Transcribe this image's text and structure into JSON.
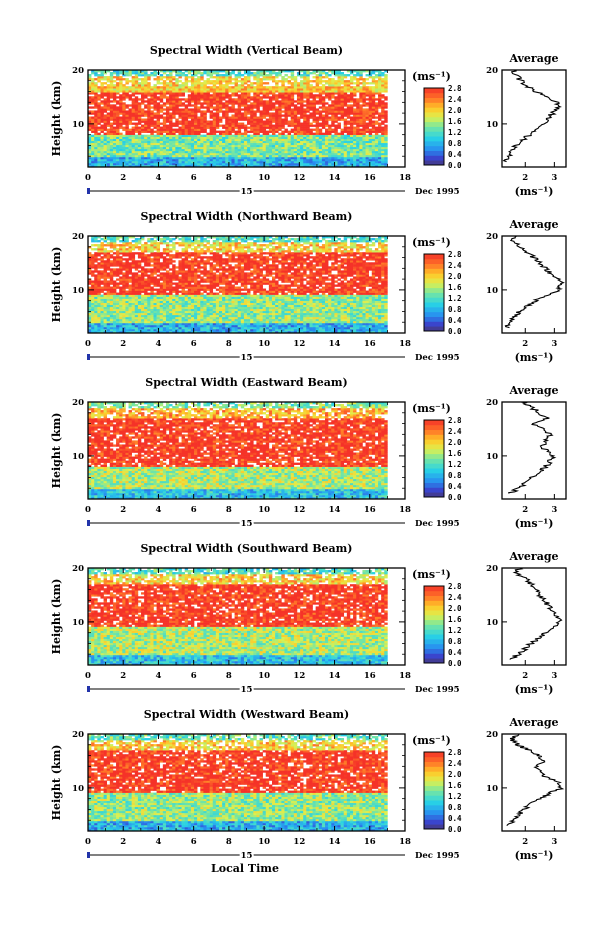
{
  "figure": {
    "date_label": "Dec 1995",
    "day_label": "15",
    "x_axis_title": "Local Time",
    "y_axis_title": "Height (km)",
    "unit_label": "(ms⁻¹)",
    "average_title": "Average",
    "average_unit_label": "(ms⁻¹)"
  },
  "chart_data": [
    {
      "type": "heatmap",
      "title": "Spectral Width (Vertical Beam)",
      "xlabel": "",
      "ylabel": "Height (km)",
      "xlim": [
        0,
        18
      ],
      "ylim": [
        2,
        20
      ],
      "x_ticks": [
        0,
        2,
        4,
        6,
        8,
        10,
        12,
        14,
        16,
        18
      ],
      "y_ticks": [
        10,
        20
      ],
      "data_end_time": 17,
      "colorbar": {
        "label": "(ms⁻¹)",
        "range": [
          0,
          2.8
        ],
        "ticks": [
          "0.0",
          "0.4",
          "0.8",
          "1.2",
          "1.6",
          "2.0",
          "2.4",
          "2.8"
        ]
      },
      "layers": [
        {
          "height_range": [
            2,
            4
          ],
          "level": 0.8
        },
        {
          "height_range": [
            4,
            8
          ],
          "level": 1.4
        },
        {
          "height_range": [
            8,
            16
          ],
          "level": 2.8
        },
        {
          "height_range": [
            16,
            19
          ],
          "level": 2.0
        },
        {
          "height_range": [
            19,
            20
          ],
          "level": 1.2
        }
      ],
      "average_profile": {
        "xlim": [
          1.2,
          3.4
        ],
        "x_ticks": [
          2,
          3
        ],
        "heights": [
          3,
          4,
          5,
          6,
          7,
          8,
          9,
          10,
          11,
          12,
          13,
          14,
          15,
          16,
          17,
          18,
          19,
          20
        ],
        "values": [
          1.3,
          1.45,
          1.5,
          1.7,
          1.9,
          2.15,
          2.4,
          2.6,
          2.75,
          2.95,
          3.15,
          3.05,
          2.7,
          2.35,
          2.05,
          1.85,
          1.7,
          1.6
        ]
      }
    },
    {
      "type": "heatmap",
      "title": "Spectral Width (Northward Beam)",
      "xlabel": "",
      "ylabel": "Height (km)",
      "xlim": [
        0,
        18
      ],
      "ylim": [
        2,
        20
      ],
      "x_ticks": [
        0,
        2,
        4,
        6,
        8,
        10,
        12,
        14,
        16,
        18
      ],
      "y_ticks": [
        10,
        20
      ],
      "data_end_time": 17,
      "colorbar": {
        "label": "(ms⁻¹)",
        "range": [
          0,
          2.8
        ],
        "ticks": [
          "0.0",
          "0.4",
          "0.8",
          "1.2",
          "1.6",
          "2.0",
          "2.4",
          "2.8"
        ]
      },
      "layers": [
        {
          "height_range": [
            2,
            4
          ],
          "level": 0.8
        },
        {
          "height_range": [
            4,
            9
          ],
          "level": 1.5
        },
        {
          "height_range": [
            9,
            17
          ],
          "level": 2.8
        },
        {
          "height_range": [
            17,
            19
          ],
          "level": 2.0
        },
        {
          "height_range": [
            19,
            20
          ],
          "level": 1.2
        }
      ],
      "average_profile": {
        "xlim": [
          1.2,
          3.4
        ],
        "x_ticks": [
          2,
          3
        ],
        "heights": [
          3,
          4,
          5,
          6,
          7,
          8,
          9,
          10,
          11,
          12,
          13,
          14,
          15,
          16,
          17,
          18,
          19,
          20
        ],
        "values": [
          1.35,
          1.5,
          1.6,
          1.8,
          2.05,
          2.35,
          2.75,
          3.15,
          3.25,
          3.1,
          2.85,
          2.7,
          2.5,
          2.3,
          2.05,
          1.8,
          1.55,
          1.7
        ]
      }
    },
    {
      "type": "heatmap",
      "title": "Spectral Width (Eastward Beam)",
      "xlabel": "",
      "ylabel": "Height (km)",
      "xlim": [
        0,
        18
      ],
      "ylim": [
        2,
        20
      ],
      "x_ticks": [
        0,
        2,
        4,
        6,
        8,
        10,
        12,
        14,
        16,
        18
      ],
      "y_ticks": [
        10,
        20
      ],
      "data_end_time": 17,
      "colorbar": {
        "label": "(ms⁻¹)",
        "range": [
          0,
          2.8
        ],
        "ticks": [
          "0.0",
          "0.4",
          "0.8",
          "1.2",
          "1.6",
          "2.0",
          "2.4",
          "2.8"
        ]
      },
      "layers": [
        {
          "height_range": [
            2,
            4
          ],
          "level": 0.9
        },
        {
          "height_range": [
            4,
            8
          ],
          "level": 1.6
        },
        {
          "height_range": [
            8,
            17
          ],
          "level": 2.8
        },
        {
          "height_range": [
            17,
            19
          ],
          "level": 2.2
        },
        {
          "height_range": [
            19,
            20
          ],
          "level": 1.4
        }
      ],
      "average_profile": {
        "xlim": [
          1.2,
          3.4
        ],
        "x_ticks": [
          2,
          3
        ],
        "heights": [
          3,
          4,
          5,
          6,
          7,
          8,
          9,
          10,
          11,
          12,
          13,
          14,
          15,
          16,
          17,
          18,
          19,
          20
        ],
        "values": [
          1.5,
          1.75,
          2.0,
          2.2,
          2.45,
          2.7,
          2.85,
          2.95,
          2.7,
          2.6,
          2.75,
          2.9,
          2.55,
          2.3,
          2.75,
          2.5,
          2.2,
          1.85
        ]
      }
    },
    {
      "type": "heatmap",
      "title": "Spectral Width (Southward Beam)",
      "xlabel": "",
      "ylabel": "Height (km)",
      "xlim": [
        0,
        18
      ],
      "ylim": [
        2,
        20
      ],
      "x_ticks": [
        0,
        2,
        4,
        6,
        8,
        10,
        12,
        14,
        16,
        18
      ],
      "y_ticks": [
        10,
        20
      ],
      "data_end_time": 17,
      "colorbar": {
        "label": "(ms⁻¹)",
        "range": [
          0,
          2.8
        ],
        "ticks": [
          "0.0",
          "0.4",
          "0.8",
          "1.2",
          "1.6",
          "2.0",
          "2.4",
          "2.8"
        ]
      },
      "layers": [
        {
          "height_range": [
            2,
            4
          ],
          "level": 0.9
        },
        {
          "height_range": [
            4,
            9
          ],
          "level": 1.6
        },
        {
          "height_range": [
            9,
            17
          ],
          "level": 2.8
        },
        {
          "height_range": [
            17,
            19
          ],
          "level": 2.0
        },
        {
          "height_range": [
            19,
            20
          ],
          "level": 1.2
        }
      ],
      "average_profile": {
        "xlim": [
          1.2,
          3.4
        ],
        "x_ticks": [
          2,
          3
        ],
        "heights": [
          3,
          4,
          5,
          6,
          7,
          8,
          9,
          10,
          11,
          12,
          13,
          14,
          15,
          16,
          17,
          18,
          19,
          20
        ],
        "values": [
          1.5,
          1.75,
          2.0,
          2.2,
          2.45,
          2.7,
          2.95,
          3.2,
          3.1,
          2.9,
          2.8,
          2.65,
          2.5,
          2.4,
          2.2,
          2.0,
          1.7,
          1.8
        ]
      }
    },
    {
      "type": "heatmap",
      "title": "Spectral Width (Westward Beam)",
      "xlabel": "Local Time",
      "ylabel": "Height (km)",
      "xlim": [
        0,
        18
      ],
      "ylim": [
        2,
        20
      ],
      "x_ticks": [
        0,
        2,
        4,
        6,
        8,
        10,
        12,
        14,
        16,
        18
      ],
      "y_ticks": [
        10,
        20
      ],
      "data_end_time": 17,
      "colorbar": {
        "label": "(ms⁻¹)",
        "range": [
          0,
          2.8
        ],
        "ticks": [
          "0.0",
          "0.4",
          "0.8",
          "1.2",
          "1.6",
          "2.0",
          "2.4",
          "2.8"
        ]
      },
      "layers": [
        {
          "height_range": [
            2,
            4
          ],
          "level": 0.8
        },
        {
          "height_range": [
            4,
            9
          ],
          "level": 1.5
        },
        {
          "height_range": [
            9,
            17
          ],
          "level": 2.8
        },
        {
          "height_range": [
            17,
            19
          ],
          "level": 2.0
        },
        {
          "height_range": [
            19,
            20
          ],
          "level": 1.3
        }
      ],
      "average_profile": {
        "xlim": [
          1.2,
          3.4
        ],
        "x_ticks": [
          2,
          3
        ],
        "heights": [
          3,
          4,
          5,
          6,
          7,
          8,
          9,
          10,
          11,
          12,
          13,
          14,
          15,
          16,
          17,
          18,
          19,
          20
        ],
        "values": [
          1.45,
          1.6,
          1.75,
          1.95,
          2.2,
          2.5,
          2.85,
          3.25,
          3.15,
          2.7,
          2.55,
          2.35,
          2.6,
          2.45,
          2.1,
          1.75,
          1.55,
          1.75
        ]
      }
    }
  ]
}
